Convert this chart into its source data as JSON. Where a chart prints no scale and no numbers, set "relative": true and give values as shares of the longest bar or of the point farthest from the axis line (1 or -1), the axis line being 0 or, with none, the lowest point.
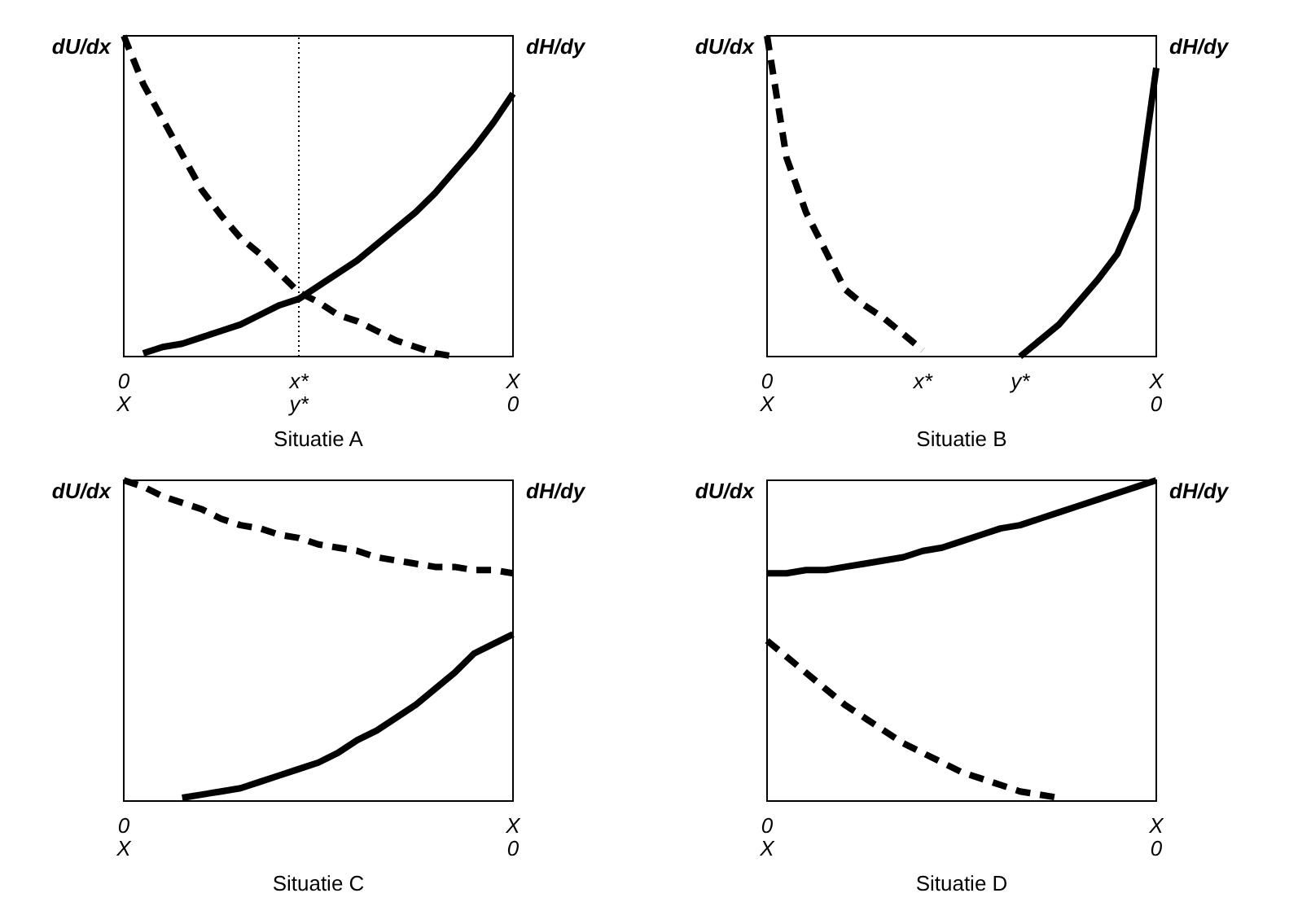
{
  "chart_data": [
    {
      "type": "line",
      "relative": true,
      "xlabel": "Situatie A",
      "ylabel": "dU/dx",
      "y2label": "dH/dy",
      "marker": "none",
      "categories": [
        "0\nX",
        null,
        null,
        null,
        null,
        null,
        null,
        null,
        null,
        "x*\ny*",
        null,
        null,
        null,
        null,
        null,
        null,
        null,
        null,
        null,
        null,
        "X\n0"
      ],
      "ref_lines": [
        {
          "axis": "x",
          "value": "x*\ny*",
          "line_style": "dotted",
          "color": "#000000"
        }
      ],
      "series": [
        {
          "color": "#000000",
          "line_style": "dashed",
          "values": [
            1,
            0.85,
            0.74,
            0.63,
            0.52,
            0.44,
            0.37,
            0.32,
            0.26,
            0.2,
            0.17,
            0.13,
            0.11,
            0.08,
            0.05,
            0.03,
            0.01,
            0,
            null,
            null,
            null
          ]
        },
        {
          "color": "#000000",
          "line_style": "solid",
          "values": [
            null,
            0.01,
            0.03,
            0.04,
            0.06,
            0.08,
            0.1,
            0.13,
            0.16,
            0.18,
            0.22,
            0.26,
            0.3,
            0.35,
            0.4,
            0.45,
            0.51,
            0.58,
            0.65,
            0.73,
            0.82
          ]
        }
      ]
    },
    {
      "type": "line",
      "relative": true,
      "xlabel": "Situatie B",
      "ylabel": "dU/dx",
      "y2label": "dH/dy",
      "marker": "none",
      "categories": [
        "0\nX",
        null,
        null,
        null,
        null,
        null,
        null,
        null,
        "x*",
        null,
        null,
        null,
        null,
        "y*",
        null,
        null,
        null,
        null,
        null,
        null,
        "X\n0"
      ],
      "series": [
        {
          "color": "#000000",
          "line_style": "dashed",
          "values": [
            1,
            0.62,
            0.45,
            0.33,
            0.21,
            0.16,
            0.12,
            0.07,
            0.02,
            null,
            null,
            null,
            null,
            null,
            null,
            null,
            null,
            null,
            null,
            null,
            null
          ]
        },
        {
          "color": "#000000",
          "line_style": "solid",
          "values": [
            null,
            null,
            null,
            null,
            null,
            null,
            null,
            null,
            null,
            null,
            null,
            null,
            null,
            0,
            0.05,
            0.1,
            0.17,
            0.24,
            0.32,
            0.46,
            0.9
          ]
        }
      ]
    },
    {
      "type": "line",
      "relative": true,
      "xlabel": "Situatie C",
      "ylabel": "dU/dx",
      "y2label": "dH/dy",
      "marker": "none",
      "categories": [
        "0\nX",
        null,
        null,
        null,
        null,
        null,
        null,
        null,
        null,
        null,
        null,
        null,
        null,
        null,
        null,
        null,
        null,
        null,
        null,
        null,
        "X\n0"
      ],
      "series": [
        {
          "color": "#000000",
          "line_style": "dashed",
          "values": [
            1,
            0.98,
            0.95,
            0.93,
            0.91,
            0.88,
            0.86,
            0.85,
            0.83,
            0.82,
            0.8,
            0.79,
            0.78,
            0.76,
            0.75,
            0.74,
            0.73,
            0.73,
            0.72,
            0.72,
            0.71
          ]
        },
        {
          "color": "#000000",
          "line_style": "solid",
          "values": [
            null,
            null,
            null,
            0.01,
            0.02,
            0.03,
            0.04,
            0.06,
            0.08,
            0.1,
            0.12,
            0.15,
            0.19,
            0.22,
            0.26,
            0.3,
            0.35,
            0.4,
            0.46,
            0.49,
            0.52
          ]
        }
      ]
    },
    {
      "type": "line",
      "relative": true,
      "xlabel": "Situatie D",
      "ylabel": "dU/dx",
      "y2label": "dH/dy",
      "marker": "none",
      "categories": [
        "0\nX",
        null,
        null,
        null,
        null,
        null,
        null,
        null,
        null,
        null,
        null,
        null,
        null,
        null,
        null,
        null,
        null,
        null,
        null,
        null,
        "X\n0"
      ],
      "series": [
        {
          "color": "#000000",
          "line_style": "solid",
          "values": [
            0.71,
            0.71,
            0.72,
            0.72,
            0.73,
            0.74,
            0.75,
            0.76,
            0.78,
            0.79,
            0.81,
            0.83,
            0.85,
            0.86,
            0.88,
            0.9,
            0.92,
            0.94,
            0.96,
            0.98,
            1
          ]
        },
        {
          "color": "#000000",
          "line_style": "dashed",
          "values": [
            0.5,
            0.45,
            0.4,
            0.35,
            0.3,
            0.26,
            0.22,
            0.18,
            0.15,
            0.12,
            0.09,
            0.07,
            0.05,
            0.03,
            0.02,
            0.01,
            null,
            null,
            null,
            null,
            null
          ]
        }
      ]
    }
  ]
}
